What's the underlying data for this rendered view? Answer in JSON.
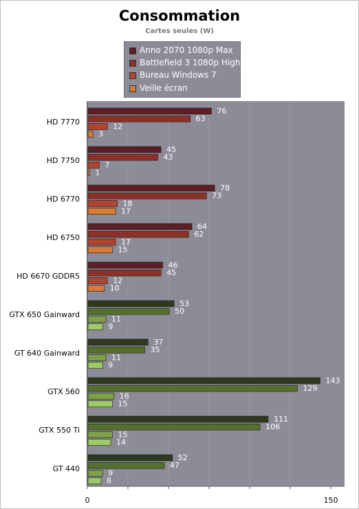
{
  "chart_data": {
    "type": "bar",
    "orientation": "horizontal",
    "title": "Consommation",
    "subtitle": "Cartes seules (W)",
    "xlim": [
      0,
      150
    ],
    "x_ticks": [
      "0",
      "150"
    ],
    "legend_position": "top-center",
    "categories": [
      "HD 7770",
      "HD 7750",
      "HD 6770",
      "HD 6750",
      "HD 6670 GDDR5",
      "GTX 650 Gainward",
      "GT 640 Gainward",
      "GTX 560",
      "GTX 550 Ti",
      "GT 440"
    ],
    "series": [
      {
        "name": "Anno 2070 1080p Max",
        "values": [
          76,
          45,
          78,
          64,
          46,
          53,
          37,
          143,
          111,
          52
        ]
      },
      {
        "name": "Battlefield 3 1080p High",
        "values": [
          63,
          43,
          73,
          62,
          45,
          50,
          35,
          129,
          106,
          47
        ]
      },
      {
        "name": "Bureau Windows 7",
        "values": [
          12,
          7,
          18,
          17,
          12,
          11,
          11,
          16,
          15,
          9
        ]
      },
      {
        "name": "Veille écran",
        "values": [
          3,
          1,
          17,
          15,
          10,
          9,
          9,
          15,
          14,
          8
        ]
      }
    ],
    "colors": {
      "amd": [
        "#5c1f24",
        "#8b3128",
        "#b0442f",
        "#d97a38"
      ],
      "nvidia": [
        "#2d3a1f",
        "#55702e",
        "#7ea048",
        "#9ecb68"
      ]
    },
    "nvidia_start_index": 5
  }
}
